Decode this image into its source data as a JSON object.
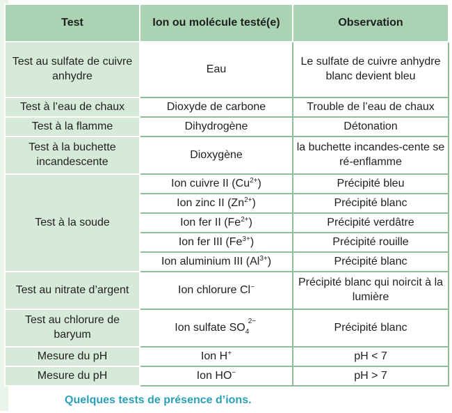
{
  "table": {
    "headers": [
      "Test",
      "Ion ou molécule testé(e)",
      "Observation"
    ],
    "rows": [
      {
        "test": "Test au sulfate de cuivre anhydre",
        "ion": "Eau",
        "obs": "Le sulfate de cuivre anhydre blanc devient bleu"
      },
      {
        "test": "Test à l’eau de chaux",
        "ion": "Dioxyde de carbone",
        "obs": "Trouble de l’eau de chaux"
      },
      {
        "test": "Test à la flamme",
        "ion": "Dihydrogène",
        "obs": "Détonation"
      },
      {
        "test": "Test à la buchette incandescente",
        "ion": "Dioxygène",
        "obs": "la buchette incandes-cente se ré-enflamme"
      },
      {
        "test": "Test à la soude",
        "subrows": [
          {
            "ion_text": "Ion cuivre II (Cu",
            "charge": "2+",
            "close": ")",
            "obs": "Précipité bleu"
          },
          {
            "ion_text": "Ion zinc II (Zn",
            "charge": "2+",
            "close": ")",
            "obs": "Précipité blanc"
          },
          {
            "ion_text": "Ion fer II (Fe",
            "charge": "2+",
            "close": ")",
            "obs": "Précipité verdâtre"
          },
          {
            "ion_text": "Ion fer III (Fe",
            "charge": "3+",
            "close": ")",
            "obs": "Précipité rouille"
          },
          {
            "ion_text": "Ion aluminium III (Al",
            "charge": "3+",
            "close": ")",
            "obs": "Précipité blanc"
          }
        ]
      },
      {
        "test": "Test au nitrate d’argent",
        "ion_text": "Ion chlorure Cl",
        "charge": "−",
        "obs": "Précipité blanc qui noircit à la lumière"
      },
      {
        "test": "Test au chlorure de baryum",
        "ion_text": "Ion sulfate SO",
        "sub": "4",
        "charge": "2−",
        "obs": "Précipité blanc"
      },
      {
        "test": "Mesure du pH",
        "ion_text": "Ion H",
        "charge": "+",
        "obs": "pH < 7"
      },
      {
        "test": "Mesure du pH",
        "ion_text": "Ion HO",
        "charge": "−",
        "obs": "pH > 7"
      }
    ]
  },
  "caption": "Quelques tests de présence d’ions.",
  "colors": {
    "header": "#a9d3b2",
    "first_col": "#d7ead9",
    "border": "#8cbf97",
    "caption": "#2aa0b8"
  }
}
